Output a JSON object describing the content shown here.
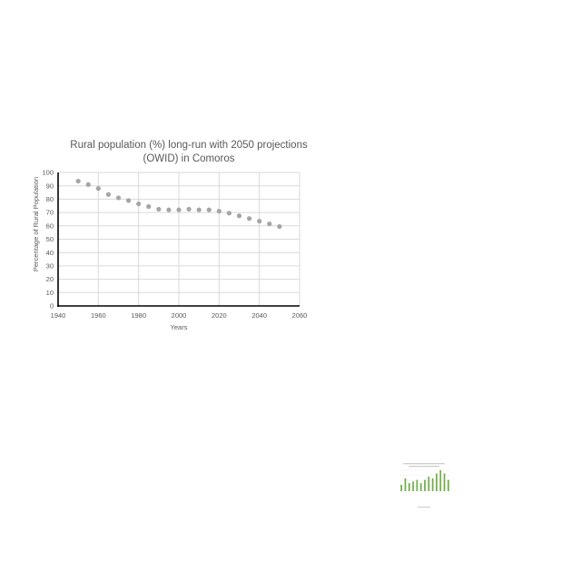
{
  "chart_data": [
    {
      "type": "scatter",
      "title_lines": [
        "Rural population (%) long-run with 2050 projections",
        "(OWID) in Comoros"
      ],
      "xlabel": "Years",
      "ylabel": "Percentage of Rural Population",
      "xlim": [
        1940,
        2060
      ],
      "ylim": [
        0,
        100
      ],
      "xticks": [
        1940,
        1960,
        1980,
        2000,
        2020,
        2040,
        2060
      ],
      "yticks": [
        0,
        10,
        20,
        30,
        40,
        50,
        60,
        70,
        80,
        90,
        100
      ],
      "grid": true,
      "marker_color": "#a5a5a5",
      "series": [
        {
          "x": [
            1950,
            1955,
            1960,
            1965,
            1970,
            1975,
            1980,
            1985,
            1990,
            1995,
            2000,
            2005,
            2010,
            2015,
            2020,
            2025,
            2030,
            2035,
            2040,
            2045,
            2050
          ],
          "y": [
            93.5,
            91,
            88,
            83.5,
            81,
            79,
            76.5,
            74.5,
            72.5,
            72,
            72,
            72.5,
            72,
            72,
            71,
            69.5,
            67.5,
            65.5,
            63.5,
            61.5,
            59.5
          ]
        }
      ]
    },
    {
      "type": "bar",
      "bar_color": "#70ad47",
      "values": [
        4,
        8,
        5,
        6,
        7,
        5,
        7,
        9,
        8,
        11,
        13,
        11,
        7
      ]
    }
  ]
}
